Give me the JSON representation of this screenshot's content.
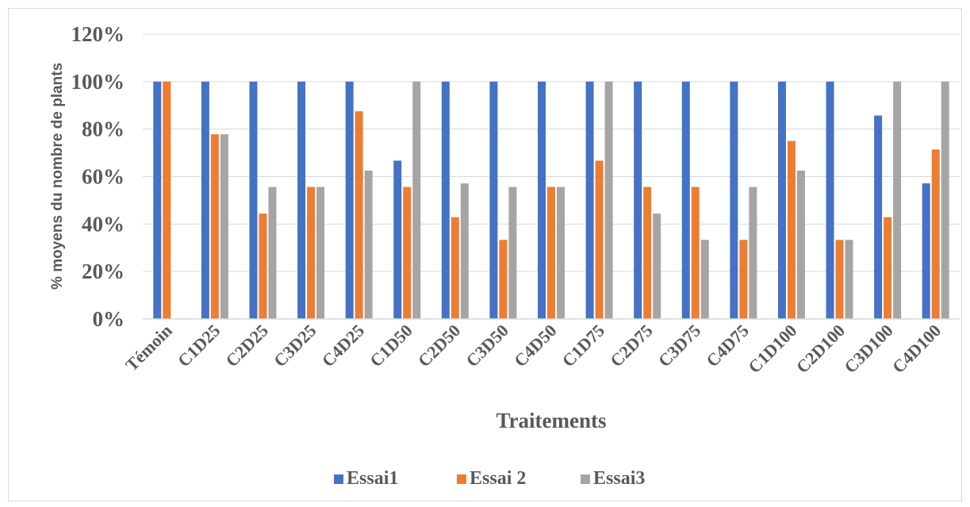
{
  "chart_data": {
    "type": "bar",
    "title": "",
    "xlabel": "Traitements",
    "ylabel": "% moyens du nombre de plants",
    "ylim": [
      0,
      1.2
    ],
    "y_ticks": [
      "0%",
      "20%",
      "40%",
      "60%",
      "80%",
      "100%",
      "120%"
    ],
    "y_tick_values": [
      0,
      0.2,
      0.4,
      0.6,
      0.8,
      1.0,
      1.2
    ],
    "grid": true,
    "legend_position": "bottom",
    "categories": [
      "Témoin",
      "C1D25",
      "C2D25",
      "C3D25",
      "C4D25",
      "C1D50",
      "C2D50",
      "C3D50",
      "C4D50",
      "C1D75",
      "C2D75",
      "C3D75",
      "C4D75",
      "C1D100",
      "C2D100",
      "C3D100",
      "C4D100"
    ],
    "series": [
      {
        "name": "Essai1",
        "color": "#4472c4",
        "values": [
          1.0,
          1.0,
          1.0,
          1.0,
          1.0,
          0.667,
          1.0,
          1.0,
          1.0,
          1.0,
          1.0,
          1.0,
          1.0,
          1.0,
          1.0,
          0.857,
          0.571
        ]
      },
      {
        "name": "Essai 2",
        "color": "#ed7d31",
        "values": [
          1.0,
          0.778,
          0.444,
          0.556,
          0.875,
          0.556,
          0.429,
          0.333,
          0.556,
          0.667,
          0.556,
          0.556,
          0.333,
          0.75,
          0.333,
          0.429,
          0.714
        ]
      },
      {
        "name": "Essai3",
        "color": "#a5a5a5",
        "values": [
          0,
          0.778,
          0.556,
          0.556,
          0.625,
          1.0,
          0.571,
          0.556,
          0.556,
          1.0,
          0.444,
          0.333,
          0.556,
          0.625,
          0.333,
          1.0,
          1.0
        ]
      }
    ]
  }
}
